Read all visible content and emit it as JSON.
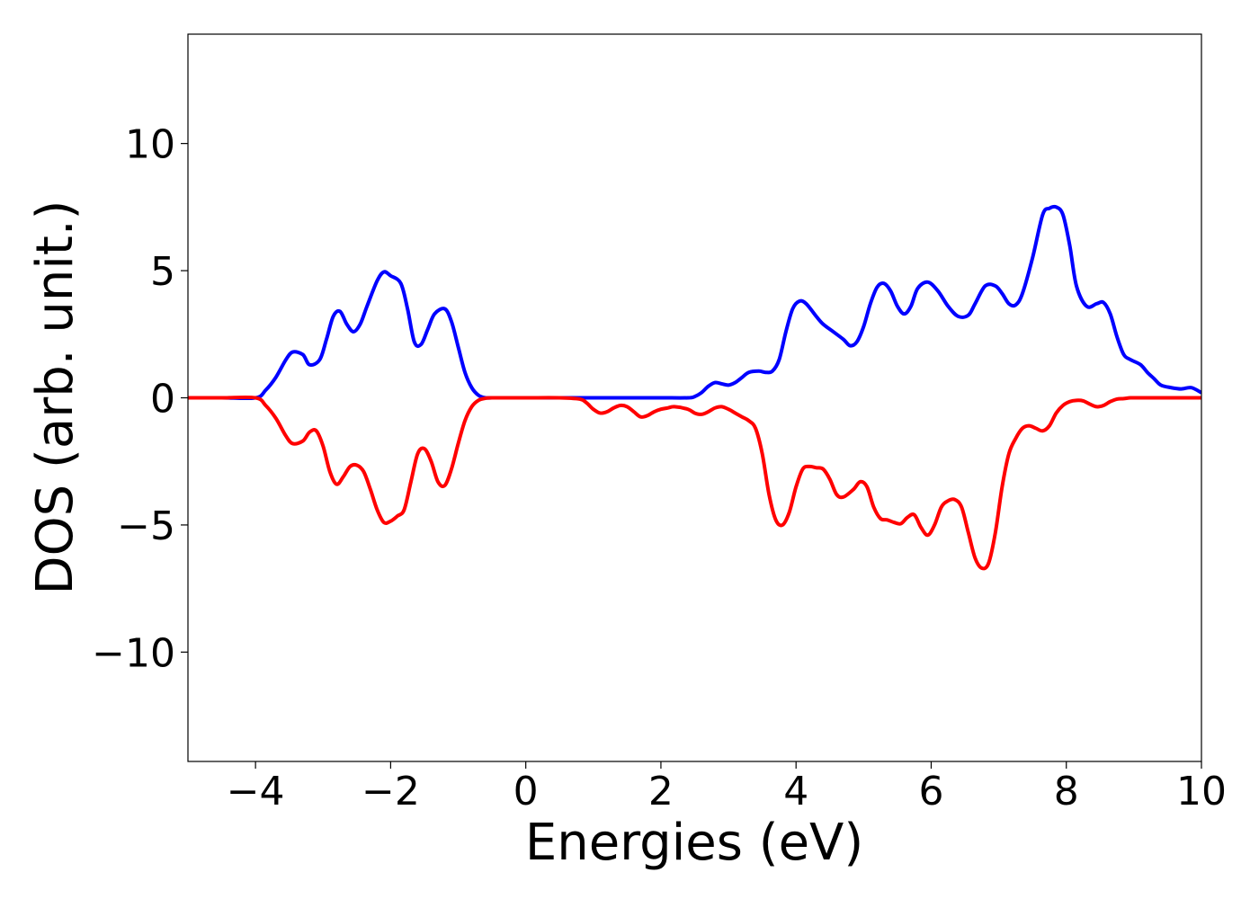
{
  "chart_data": {
    "type": "line",
    "title": "",
    "xlabel": "Energies (eV)",
    "ylabel": "DOS (arb. unit.)",
    "xlim": [
      -5,
      10
    ],
    "ylim": [
      -14.3,
      14.3
    ],
    "xticks": [
      -4,
      -2,
      0,
      2,
      4,
      6,
      8,
      10
    ],
    "xtick_labels": [
      "−4",
      "−2",
      "0",
      "2",
      "4",
      "6",
      "8",
      "10"
    ],
    "yticks": [
      -10,
      -5,
      0,
      5,
      10
    ],
    "ytick_labels": [
      "−10",
      "−5",
      "0",
      "5",
      "10"
    ],
    "grid": false,
    "legend": "none",
    "series": [
      {
        "color": "#0000ff",
        "x": [
          -5,
          -4.5,
          -4,
          -3.85,
          -3.7,
          -3.55,
          -3.45,
          -3.3,
          -3.2,
          -3.05,
          -2.95,
          -2.85,
          -2.75,
          -2.65,
          -2.55,
          -2.45,
          -2.35,
          -2.2,
          -2.1,
          -2.0,
          -1.85,
          -1.75,
          -1.65,
          -1.55,
          -1.45,
          -1.35,
          -1.2,
          -1.1,
          -1.0,
          -0.9,
          -0.8,
          -0.7,
          -0.6,
          -0.5,
          -0.3,
          0,
          0.5,
          1.0,
          1.5,
          2.0,
          2.4,
          2.5,
          2.6,
          2.7,
          2.8,
          2.9,
          3.0,
          3.1,
          3.2,
          3.3,
          3.45,
          3.55,
          3.65,
          3.75,
          3.85,
          3.95,
          4.05,
          4.15,
          4.3,
          4.4,
          4.55,
          4.7,
          4.8,
          4.9,
          5.0,
          5.1,
          5.2,
          5.3,
          5.4,
          5.5,
          5.6,
          5.7,
          5.8,
          5.95,
          6.1,
          6.25,
          6.4,
          6.55,
          6.65,
          6.8,
          6.95,
          7.05,
          7.15,
          7.25,
          7.35,
          7.5,
          7.65,
          7.75,
          7.85,
          7.95,
          8.05,
          8.15,
          8.3,
          8.45,
          8.55,
          8.65,
          8.75,
          8.85,
          8.95,
          9.1,
          9.2,
          9.3,
          9.4,
          9.55,
          9.7,
          9.85,
          10
        ],
        "y": [
          0,
          0,
          0,
          0.3,
          0.8,
          1.5,
          1.8,
          1.7,
          1.3,
          1.5,
          2.3,
          3.2,
          3.4,
          2.9,
          2.6,
          2.9,
          3.6,
          4.6,
          4.95,
          4.8,
          4.5,
          3.5,
          2.2,
          2.1,
          2.7,
          3.3,
          3.5,
          3.0,
          2.0,
          1.0,
          0.4,
          0.1,
          0,
          0,
          0,
          0,
          0,
          0,
          0,
          0,
          0,
          0.05,
          0.2,
          0.45,
          0.6,
          0.55,
          0.5,
          0.6,
          0.8,
          1.0,
          1.05,
          1.0,
          1.05,
          1.5,
          2.6,
          3.5,
          3.8,
          3.7,
          3.2,
          2.9,
          2.6,
          2.3,
          2.05,
          2.2,
          2.8,
          3.7,
          4.35,
          4.5,
          4.2,
          3.6,
          3.3,
          3.6,
          4.3,
          4.55,
          4.2,
          3.6,
          3.2,
          3.25,
          3.7,
          4.4,
          4.4,
          4.1,
          3.7,
          3.65,
          4.1,
          5.5,
          7.2,
          7.45,
          7.5,
          7.2,
          6.0,
          4.4,
          3.6,
          3.7,
          3.75,
          3.3,
          2.4,
          1.7,
          1.5,
          1.3,
          1.0,
          0.75,
          0.5,
          0.4,
          0.35,
          0.4,
          0.2
        ]
      },
      {
        "color": "#ff0000",
        "x": [
          -5,
          -4.5,
          -4,
          -3.85,
          -3.7,
          -3.55,
          -3.45,
          -3.3,
          -3.2,
          -3.1,
          -3.0,
          -2.9,
          -2.8,
          -2.7,
          -2.6,
          -2.5,
          -2.4,
          -2.3,
          -2.2,
          -2.1,
          -2.0,
          -1.9,
          -1.8,
          -1.7,
          -1.6,
          -1.5,
          -1.4,
          -1.3,
          -1.2,
          -1.1,
          -1.0,
          -0.9,
          -0.8,
          -0.7,
          -0.6,
          -0.5,
          0,
          0.5,
          0.8,
          0.9,
          1.0,
          1.1,
          1.2,
          1.3,
          1.4,
          1.5,
          1.6,
          1.7,
          1.8,
          1.9,
          2.0,
          2.1,
          2.2,
          2.4,
          2.5,
          2.6,
          2.7,
          2.8,
          2.9,
          3.0,
          3.1,
          3.2,
          3.3,
          3.4,
          3.5,
          3.6,
          3.7,
          3.8,
          3.9,
          4.0,
          4.1,
          4.2,
          4.3,
          4.4,
          4.5,
          4.6,
          4.7,
          4.85,
          4.95,
          5.05,
          5.15,
          5.25,
          5.35,
          5.45,
          5.55,
          5.65,
          5.75,
          5.85,
          5.95,
          6.05,
          6.15,
          6.25,
          6.35,
          6.45,
          6.55,
          6.65,
          6.75,
          6.85,
          6.95,
          7.05,
          7.15,
          7.25,
          7.35,
          7.45,
          7.55,
          7.65,
          7.75,
          7.85,
          7.95,
          8.05,
          8.15,
          8.25,
          8.35,
          8.45,
          8.55,
          8.65,
          8.75,
          8.85,
          8.95,
          9.05,
          9.15,
          9.25,
          9.35,
          9.45,
          9.55,
          9.65,
          9.75,
          9.85,
          10
        ],
        "y": [
          0,
          0,
          0,
          -0.3,
          -0.8,
          -1.5,
          -1.8,
          -1.7,
          -1.35,
          -1.3,
          -1.9,
          -2.9,
          -3.4,
          -3.1,
          -2.7,
          -2.65,
          -2.9,
          -3.6,
          -4.4,
          -4.9,
          -4.85,
          -4.65,
          -4.4,
          -3.3,
          -2.2,
          -2.0,
          -2.5,
          -3.3,
          -3.45,
          -2.8,
          -1.8,
          -0.9,
          -0.35,
          -0.1,
          -0.02,
          0,
          0,
          0,
          -0.05,
          -0.2,
          -0.45,
          -0.6,
          -0.55,
          -0.4,
          -0.3,
          -0.35,
          -0.55,
          -0.75,
          -0.7,
          -0.55,
          -0.45,
          -0.4,
          -0.35,
          -0.45,
          -0.6,
          -0.65,
          -0.55,
          -0.4,
          -0.35,
          -0.45,
          -0.6,
          -0.75,
          -0.9,
          -1.2,
          -2.2,
          -3.8,
          -4.8,
          -5.0,
          -4.5,
          -3.5,
          -2.8,
          -2.7,
          -2.75,
          -2.8,
          -3.2,
          -3.8,
          -3.9,
          -3.6,
          -3.3,
          -3.5,
          -4.3,
          -4.75,
          -4.8,
          -4.9,
          -4.95,
          -4.7,
          -4.6,
          -5.1,
          -5.4,
          -5.0,
          -4.3,
          -4.05,
          -4.0,
          -4.3,
          -5.3,
          -6.3,
          -6.7,
          -6.5,
          -5.3,
          -3.5,
          -2.2,
          -1.6,
          -1.2,
          -1.1,
          -1.2,
          -1.3,
          -1.1,
          -0.6,
          -0.3,
          -0.15,
          -0.1,
          -0.12,
          -0.25,
          -0.35,
          -0.3,
          -0.15,
          -0.05,
          -0.03,
          0,
          0,
          0,
          0,
          0,
          0,
          0,
          0,
          0,
          0,
          0
        ]
      }
    ]
  }
}
